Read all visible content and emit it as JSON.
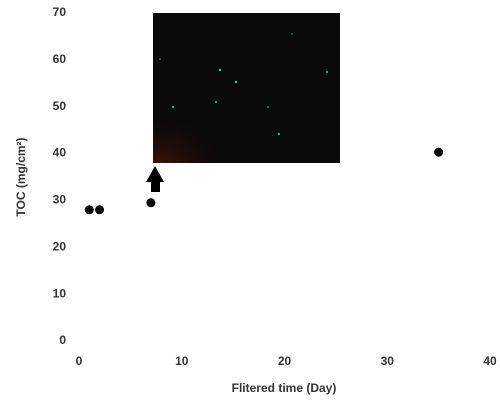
{
  "chart_data": {
    "type": "scatter",
    "x_label": "Flitered time (Day)",
    "y_label": "TOC (mg/cm²)",
    "x": [
      1,
      2,
      7,
      35
    ],
    "values": [
      28,
      28,
      29.5,
      40.3
    ],
    "color": "#000000",
    "xlim": [
      0,
      40
    ],
    "xticks": [
      0,
      10,
      20,
      30,
      40
    ],
    "ylim": [
      0,
      70
    ],
    "yticks": [
      0,
      10,
      20,
      30,
      40,
      50,
      60,
      70
    ],
    "grid": false
  }
}
